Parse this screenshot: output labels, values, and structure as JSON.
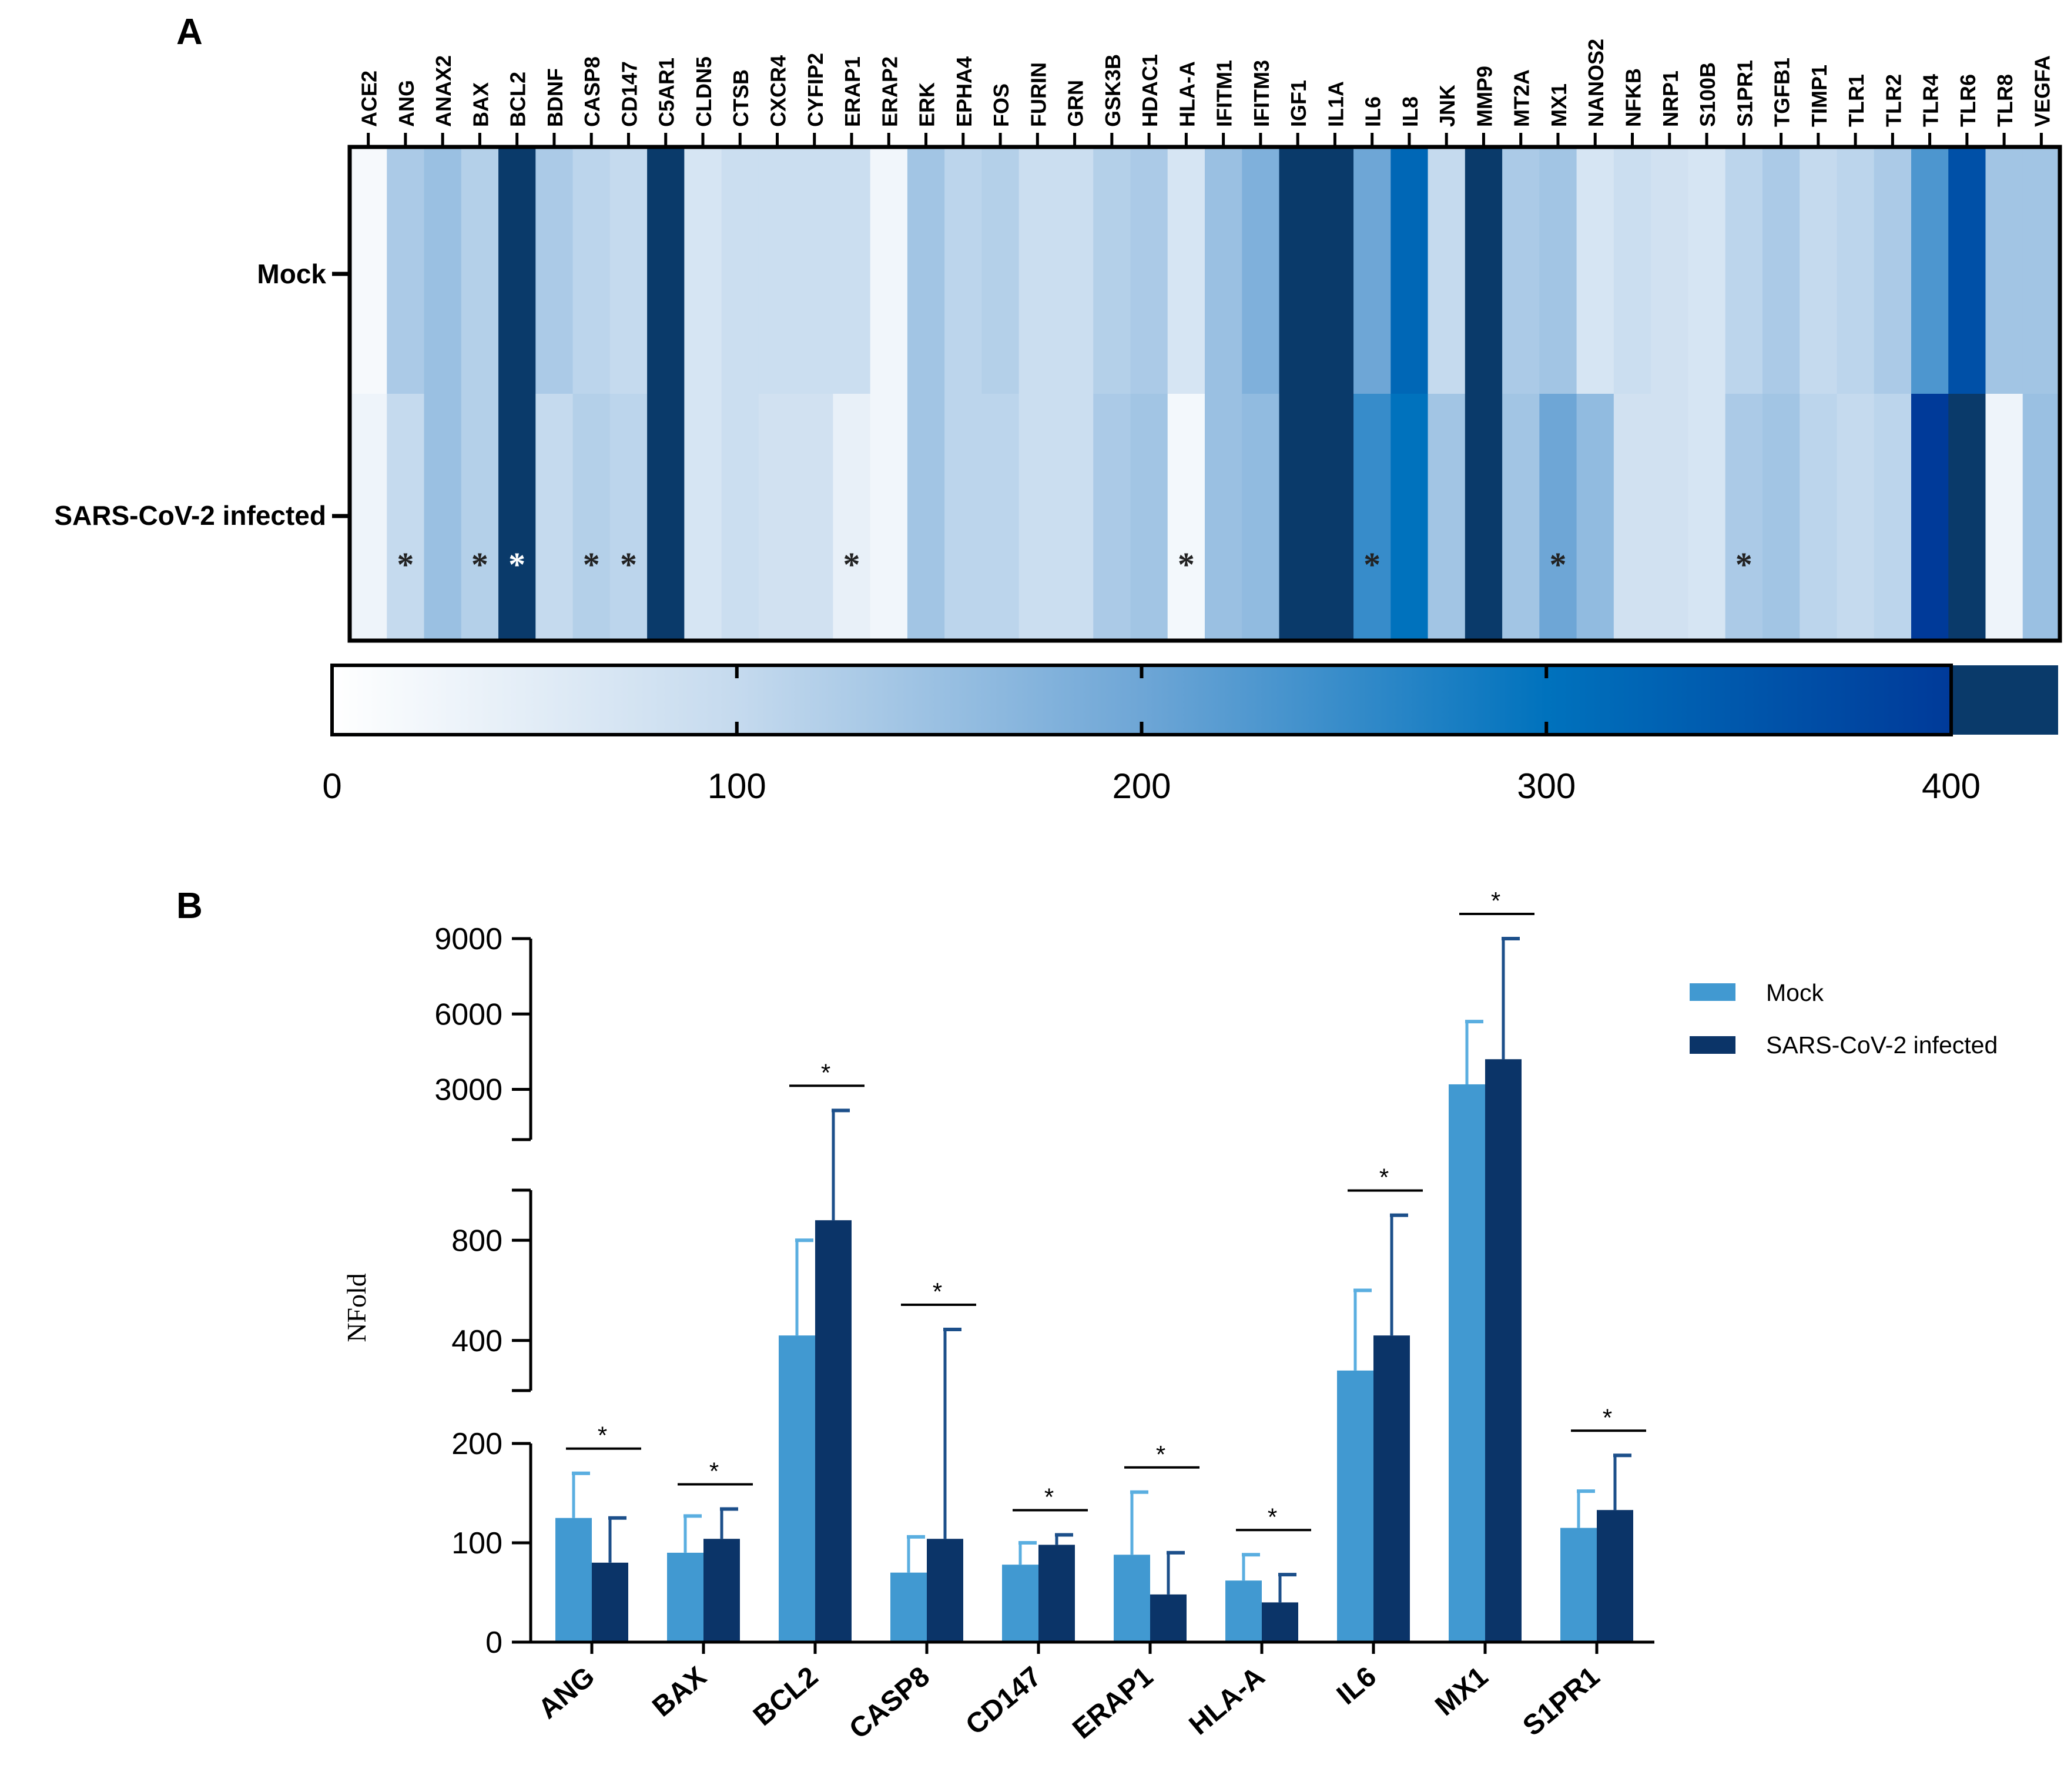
{
  "panel_a": {
    "label": "A",
    "chart_data": {
      "type": "heatmap",
      "title": "",
      "rows": [
        "Mock",
        "SARS-CoV-2 infected"
      ],
      "columns": [
        "ACE2",
        "ANG",
        "ANAX2",
        "BAX",
        "BCL2",
        "BDNF",
        "CASP8",
        "CD147",
        "C5AR1",
        "CLDN5",
        "CTSB",
        "CXCR4",
        "CYFIP2",
        "ERAP1",
        "ERAP2",
        "ERK",
        "EPHA4",
        "FOS",
        "FURIN",
        "GRN",
        "GSK3B",
        "HDAC1",
        "HLA-A",
        "IFITM1",
        "IFITM3",
        "IGF1",
        "IL1A",
        "IL6",
        "IL8",
        "JNK",
        "MMP9",
        "MT2A",
        "MX1",
        "NANOS2",
        "NFKB",
        "NRP1",
        "S100B",
        "S1PR1",
        "TGFB1",
        "TIMP1",
        "TLR1",
        "TLR2",
        "TLR4",
        "TLR6",
        "TLR8",
        "VEGFA"
      ],
      "values": [
        [
          15,
          130,
          150,
          120,
          420,
          130,
          110,
          100,
          420,
          70,
          90,
          90,
          90,
          90,
          25,
          140,
          110,
          120,
          90,
          90,
          120,
          130,
          70,
          150,
          180,
          420,
          420,
          200,
          320,
          100,
          420,
          130,
          140,
          70,
          90,
          80,
          70,
          110,
          130,
          100,
          110,
          130,
          230,
          360,
          140,
          140
        ],
        [
          30,
          100,
          150,
          120,
          420,
          100,
          120,
          110,
          420,
          70,
          90,
          80,
          80,
          40,
          25,
          140,
          110,
          110,
          90,
          90,
          130,
          140,
          20,
          150,
          160,
          420,
          420,
          250,
          300,
          140,
          420,
          140,
          200,
          160,
          80,
          80,
          70,
          130,
          140,
          110,
          100,
          110,
          400,
          420,
          30,
          150
        ]
      ],
      "significant": [
        {
          "row": "SARS-CoV-2 infected",
          "column": "ANG"
        },
        {
          "row": "SARS-CoV-2 infected",
          "column": "BAX"
        },
        {
          "row": "SARS-CoV-2 infected",
          "column": "BCL2"
        },
        {
          "row": "SARS-CoV-2 infected",
          "column": "CASP8"
        },
        {
          "row": "SARS-CoV-2 infected",
          "column": "CD147"
        },
        {
          "row": "SARS-CoV-2 infected",
          "column": "ERAP1"
        },
        {
          "row": "SARS-CoV-2 infected",
          "column": "HLA-A"
        },
        {
          "row": "SARS-CoV-2 infected",
          "column": "IL6"
        },
        {
          "row": "SARS-CoV-2 infected",
          "column": "MX1"
        },
        {
          "row": "SARS-CoV-2 infected",
          "column": "S1PR1"
        }
      ],
      "star_symbol": "*",
      "colorbar": {
        "ticks": [
          0,
          100,
          200,
          300,
          400
        ],
        "tick_labels": [
          "0",
          "100",
          "200",
          "300",
          "400"
        ],
        "range": [
          0,
          400
        ],
        "overflow_color": "#0a3a6a",
        "stops": [
          {
            "value": 0,
            "color": "#ffffff"
          },
          {
            "value": 100,
            "color": "#c5daee"
          },
          {
            "value": 200,
            "color": "#6ea6d6"
          },
          {
            "value": 300,
            "color": "#0072bd"
          },
          {
            "value": 400,
            "color": "#003a99"
          }
        ]
      }
    }
  },
  "panel_b": {
    "label": "B",
    "chart_data": {
      "type": "bar",
      "title": "",
      "xlabel": "",
      "ylabel": "NFold",
      "categories": [
        "ANG",
        "BAX",
        "BCL2",
        "CASP8",
        "CD147",
        "ERAP1",
        "HLA-A",
        "IL6",
        "MX1",
        "S1PR1"
      ],
      "series": [
        {
          "name": "Mock",
          "color": "#4199d1",
          "values": [
            125,
            90,
            420,
            70,
            78,
            88,
            62,
            280,
            3200,
            115
          ],
          "error": [
            45,
            37,
            380,
            36,
            22,
            63,
            26,
            320,
            2500,
            37
          ]
        },
        {
          "name": "SARS-CoV-2 infected",
          "color": "#0b3468",
          "values": [
            80,
            104,
            880,
            104,
            98,
            48,
            40,
            420,
            4200,
            133
          ],
          "error": [
            45,
            30,
            1280,
            340,
            10,
            42,
            28,
            480,
            4800,
            55
          ]
        }
      ],
      "significance_label": "*",
      "significant_categories": [
        "ANG",
        "BAX",
        "BCL2",
        "CASP8",
        "CD147",
        "ERAP1",
        "HLA-A",
        "IL6",
        "MX1",
        "S1PR1"
      ],
      "y_axis_segments": [
        {
          "range": [
            0,
            200
          ],
          "ticks": [
            0,
            100,
            200
          ],
          "tick_labels": [
            "0",
            "100",
            "200"
          ]
        },
        {
          "range": [
            200,
            1000
          ],
          "ticks": [
            400,
            800
          ],
          "tick_labels": [
            "400",
            "800"
          ]
        },
        {
          "range": [
            1000,
            9000
          ],
          "ticks": [
            3000,
            6000,
            9000
          ],
          "tick_labels": [
            "3000",
            "6000",
            "9000"
          ]
        }
      ],
      "legend": {
        "position": "top-right",
        "entries": [
          "Mock",
          "SARS-CoV-2 infected"
        ]
      }
    }
  }
}
